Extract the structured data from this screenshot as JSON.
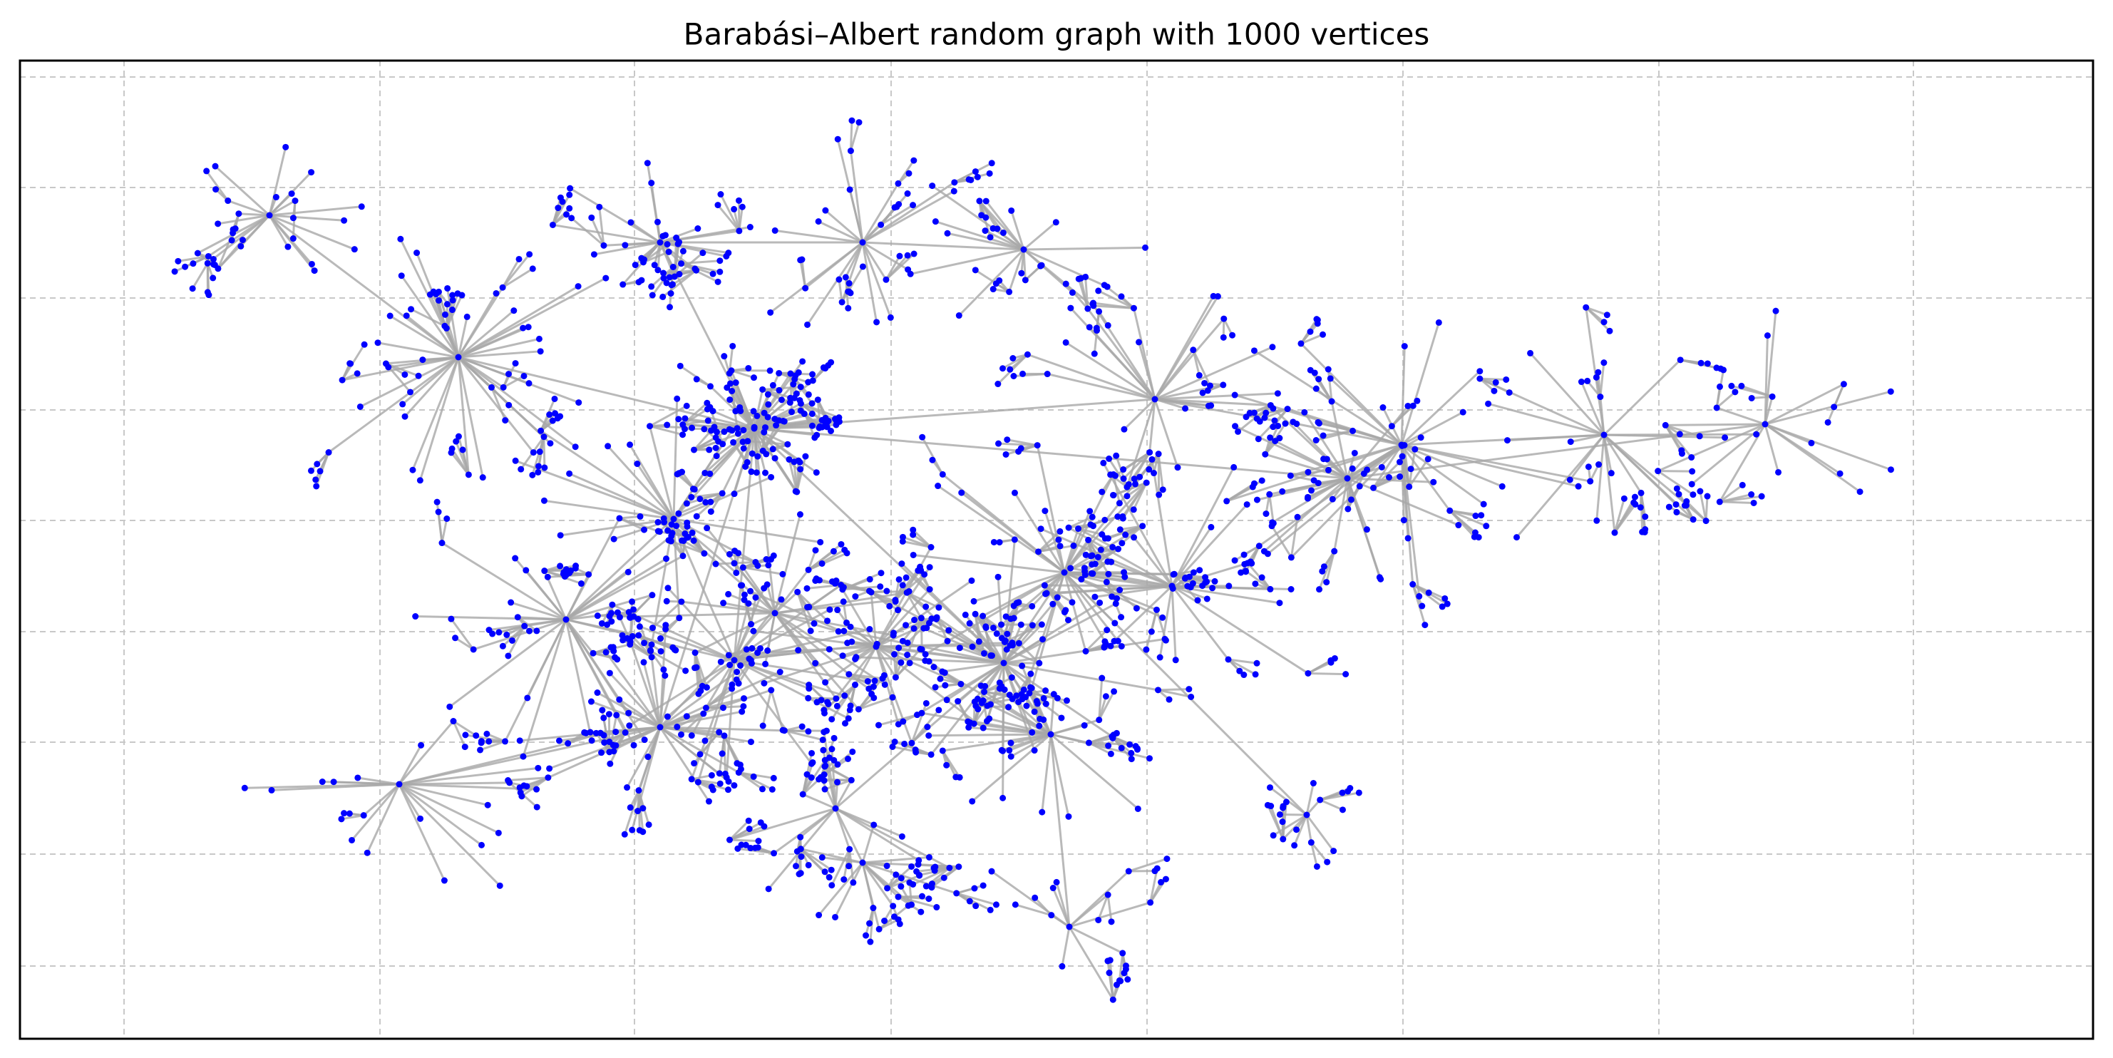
{
  "title": "Barabási–Albert random graph with 1000 vertices"
}
